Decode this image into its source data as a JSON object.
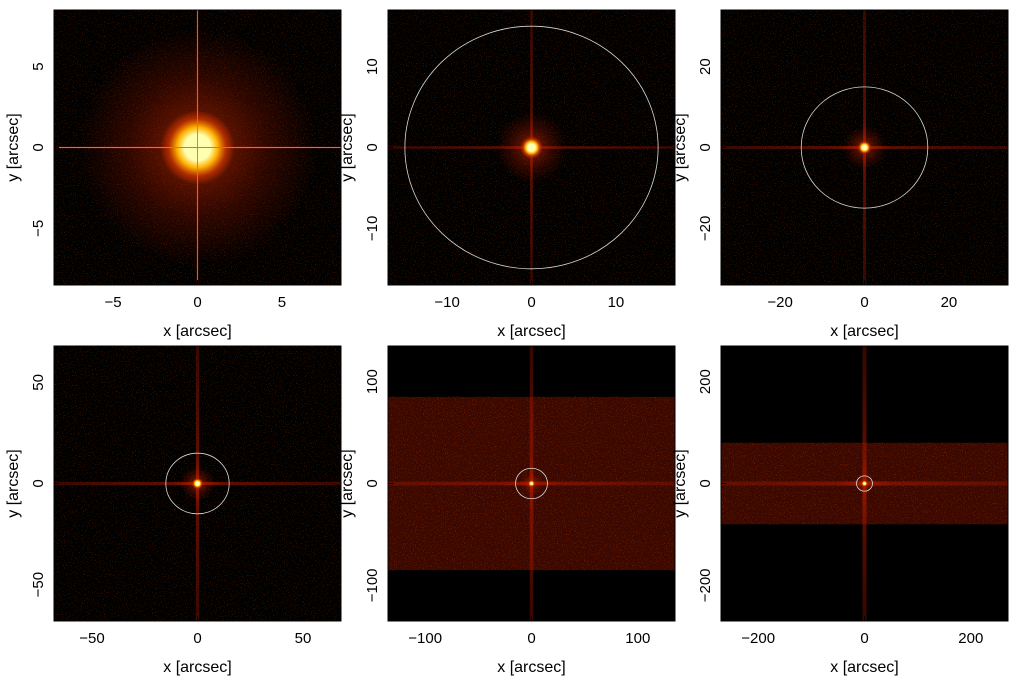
{
  "chart_data": [
    {
      "type": "heatmap",
      "xlabel": "x [arcsec]",
      "ylabel": "y [arcsec]",
      "xlim": [
        -8.5,
        8.5
      ],
      "ylim": [
        -8.5,
        8.5
      ],
      "xticks": [
        -5,
        0,
        5
      ],
      "yticks": [
        -5,
        0,
        5
      ],
      "crosshair": true,
      "circle_radius": null,
      "source_size": 2.2,
      "band_half_height": null
    },
    {
      "type": "heatmap",
      "xlabel": "x [arcsec]",
      "ylabel": "y [arcsec]",
      "xlim": [
        -17,
        17
      ],
      "ylim": [
        -17,
        17
      ],
      "xticks": [
        -10,
        0,
        10
      ],
      "yticks": [
        -10,
        0,
        10
      ],
      "crosshair": false,
      "circle_radius": 15,
      "source_size": 1.3,
      "band_half_height": null
    },
    {
      "type": "heatmap",
      "xlabel": "x [arcsec]",
      "ylabel": "y [arcsec]",
      "xlim": [
        -34,
        34
      ],
      "ylim": [
        -34,
        34
      ],
      "xticks": [
        -20,
        0,
        20
      ],
      "yticks": [
        -20,
        0,
        20
      ],
      "crosshair": false,
      "circle_radius": 15,
      "source_size": 1.6,
      "band_half_height": null
    },
    {
      "type": "heatmap",
      "xlabel": "x [arcsec]",
      "ylabel": "y [arcsec]",
      "xlim": [
        -68,
        68
      ],
      "ylim": [
        -68,
        68
      ],
      "xticks": [
        -50,
        0,
        50
      ],
      "yticks": [
        -50,
        0,
        50
      ],
      "crosshair": false,
      "circle_radius": 15,
      "source_size": 2.6,
      "band_half_height": null
    },
    {
      "type": "heatmap",
      "xlabel": "x [arcsec]",
      "ylabel": "y [arcsec]",
      "xlim": [
        -135,
        135
      ],
      "ylim": [
        -135,
        135
      ],
      "xticks": [
        -100,
        0,
        100
      ],
      "yticks": [
        -100,
        0,
        100
      ],
      "crosshair": false,
      "circle_radius": 15,
      "source_size": 3.2,
      "band_half_height": 85
    },
    {
      "type": "heatmap",
      "xlabel": "x [arcsec]",
      "ylabel": "y [arcsec]",
      "xlim": [
        -270,
        270
      ],
      "ylim": [
        -270,
        270
      ],
      "xticks": [
        -200,
        0,
        200
      ],
      "yticks": [
        -200,
        0,
        200
      ],
      "crosshair": false,
      "circle_radius": 15,
      "source_size": 5,
      "band_half_height": 80
    }
  ],
  "colors": {
    "background": "#000000",
    "band": "#3a0800",
    "spike": "#a81800",
    "source_core": "#ffffb0",
    "source_mid": "#ffb000",
    "source_outer": "#c03000",
    "circle": "#d8d8d8",
    "crosshair": "#40c040"
  }
}
